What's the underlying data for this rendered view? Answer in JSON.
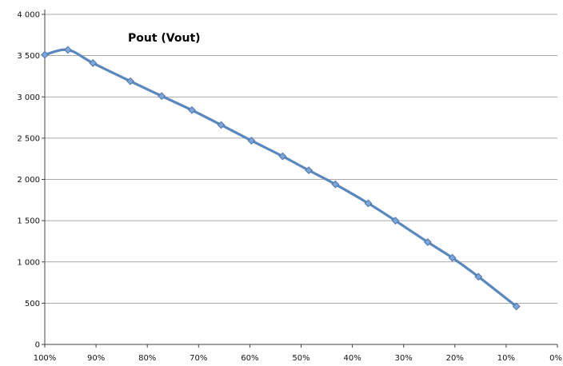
{
  "chart_data": {
    "type": "line",
    "title": "Pout (Vout)",
    "xlabel": "",
    "ylabel": "",
    "x_axis_reversed": true,
    "xlim": [
      100,
      0
    ],
    "ylim": [
      0,
      4000
    ],
    "x_ticks": [
      100,
      90,
      80,
      70,
      60,
      50,
      40,
      30,
      20,
      10,
      0
    ],
    "x_tick_labels": [
      "100%",
      "90%",
      "80%",
      "70%",
      "60%",
      "50%",
      "40%",
      "30%",
      "20%",
      "10%",
      "0%"
    ],
    "y_ticks": [
      0,
      500,
      1000,
      1500,
      2000,
      2500,
      3000,
      3500,
      4000
    ],
    "y_tick_labels": [
      "0",
      "500",
      "1 000",
      "1 500",
      "2 000",
      "2 500",
      "3 000",
      "3 500",
      "4 000"
    ],
    "grid": "horizontal",
    "legend": "none",
    "series": [
      {
        "color": "#5B87BF",
        "marker_color": "#7FA6D6",
        "x": [
          100,
          95.5,
          90.6,
          83.3,
          77.2,
          71.3,
          65.6,
          59.7,
          53.6,
          48.5,
          43.3,
          36.9,
          31.6,
          25.3,
          20.5,
          15.4,
          8.0
        ],
        "y": [
          3510,
          3570,
          3410,
          3190,
          3010,
          2840,
          2660,
          2470,
          2280,
          2110,
          1940,
          1710,
          1500,
          1240,
          1050,
          820,
          460
        ]
      }
    ]
  }
}
